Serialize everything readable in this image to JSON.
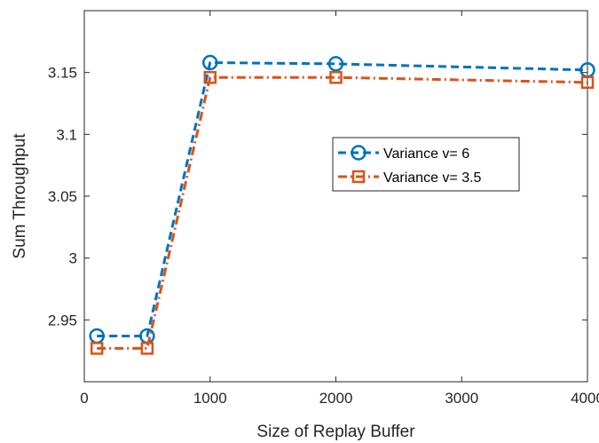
{
  "chart_data": {
    "type": "line",
    "title": "",
    "xlabel": "Size of Replay Buffer",
    "ylabel": "Sum Throughput",
    "xlim": [
      0,
      4000
    ],
    "ylim": [
      2.9,
      3.2
    ],
    "xticks": [
      0,
      1000,
      2000,
      3000,
      4000
    ],
    "xtick_labels": [
      "0",
      "1000",
      "2000",
      "3000",
      "4000"
    ],
    "yticks": [
      2.95,
      3.0,
      3.05,
      3.1,
      3.15
    ],
    "ytick_labels": [
      "2.95",
      "3",
      "3.05",
      "3.1",
      "3.15"
    ],
    "grid": false,
    "legend_position": "center-right",
    "series": [
      {
        "name": "Variance v= 6",
        "color": "#0072BD",
        "line_style": "dashed",
        "marker": "circle",
        "x": [
          100,
          500,
          1000,
          2000,
          4000
        ],
        "y": [
          2.937,
          2.937,
          3.158,
          3.157,
          3.152
        ]
      },
      {
        "name": "Variance v= 3.5",
        "color": "#D95319",
        "line_style": "dash-dot",
        "marker": "square",
        "x": [
          100,
          500,
          1000,
          2000,
          4000
        ],
        "y": [
          2.927,
          2.927,
          3.146,
          3.146,
          3.142
        ]
      }
    ]
  }
}
